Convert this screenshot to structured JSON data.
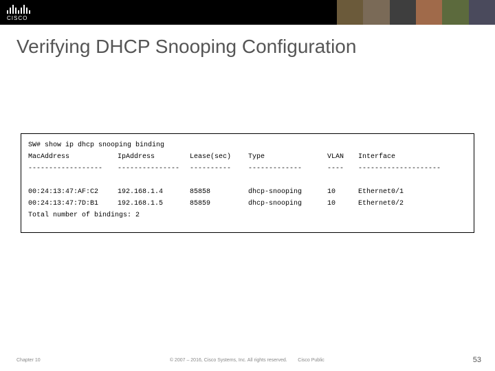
{
  "brand": {
    "name": "CISCO"
  },
  "title": "Verifying DHCP Snooping Configuration",
  "terminal": {
    "prompt": "SW# show ip dhcp snooping binding",
    "headers": {
      "mac": "MacAddress",
      "ip": "IpAddress",
      "lease": "Lease(sec)",
      "type": "Type",
      "vlan": "VLAN",
      "iface": "Interface"
    },
    "separators": {
      "mac": "------------------",
      "ip": "---------------",
      "lease": "----------",
      "type": "-------------",
      "vlan": "----",
      "iface": "--------------------"
    },
    "rows": [
      {
        "mac": "00:24:13:47:AF:C2",
        "ip": "192.168.1.4",
        "lease": "85858",
        "type": "dhcp-snooping",
        "vlan": "10",
        "iface": "Ethernet0/1"
      },
      {
        "mac": "00:24:13:47:7D:B1",
        "ip": "192.168.1.5",
        "lease": "85859",
        "type": "dhcp-snooping",
        "vlan": "10",
        "iface": "Ethernet0/2"
      }
    ],
    "summary": "Total number of bindings: 2"
  },
  "footer": {
    "chapter": "Chapter 10",
    "copyright": "© 2007 – 2016, Cisco Systems, Inc. All rights reserved.",
    "public": "Cisco Public",
    "page": "53"
  }
}
